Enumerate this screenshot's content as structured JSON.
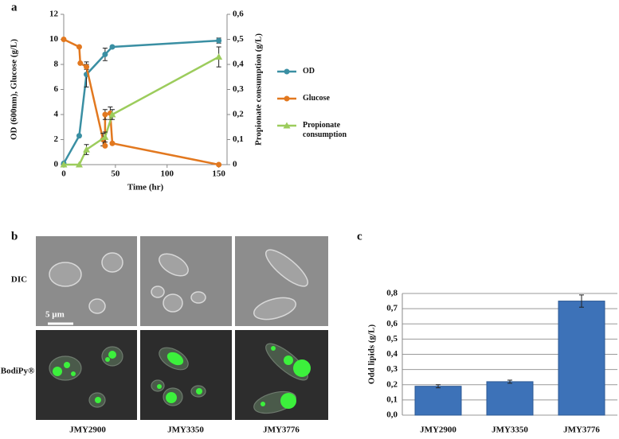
{
  "chart_data": [
    {
      "type": "line",
      "panel": "a",
      "x_label": "Time (hr)",
      "y_label": "OD (600nm), Glucose (g/L)",
      "y2_label": "Propionate consumption (g/L)",
      "xlim": [
        0,
        158
      ],
      "xticks": [
        0,
        50,
        100,
        150
      ],
      "ylim": [
        0,
        12
      ],
      "yticks": [
        0,
        2,
        4,
        6,
        8,
        10,
        12
      ],
      "y2lim": [
        0,
        0.6
      ],
      "y2ticks": [
        0,
        {
          "value": 0.1,
          "label": "0,1"
        },
        {
          "value": 0.2,
          "label": "0,2"
        },
        {
          "value": 0.3,
          "label": "0,3"
        },
        {
          "value": 0.4,
          "label": "0,4"
        },
        {
          "value": 0.5,
          "label": "0,5"
        },
        {
          "value": 0.6,
          "label": "0,6"
        }
      ],
      "series": [
        {
          "name": "OD",
          "color": "#3a8fa3",
          "marker": "circle",
          "x": [
            0,
            15,
            22,
            40,
            47,
            150
          ],
          "values": [
            0.1,
            2.3,
            7.2,
            8.8,
            9.4,
            9.9
          ],
          "errors": [
            null,
            null,
            1.0,
            0.5,
            null,
            0.2
          ]
        },
        {
          "name": "Glucose",
          "color": "#e2781f",
          "marker": "circle",
          "x": [
            0,
            15,
            16,
            22,
            38,
            40,
            40,
            45,
            47,
            150
          ],
          "values": [
            10,
            9.4,
            8.1,
            7.8,
            2.0,
            1.5,
            4.0,
            4.1,
            1.7,
            0
          ],
          "errors": [
            null,
            null,
            null,
            0.2,
            0.5,
            null,
            0.4,
            0.5,
            null,
            null
          ]
        },
        {
          "name": "Propionate consumption",
          "color": "#9ccc5c",
          "marker": "triangle",
          "axis": "y2",
          "x": [
            0,
            15,
            22,
            40,
            47,
            150
          ],
          "values": [
            0,
            0,
            0.06,
            0.11,
            0.2,
            0.43
          ],
          "errors": [
            null,
            null,
            0.02,
            0.02,
            0.02,
            0.04
          ]
        }
      ]
    },
    {
      "type": "bar",
      "panel": "c",
      "y_label": "Odd lipids (g/L)",
      "categories": [
        "JMY2900",
        "JMY3350",
        "JMY3776"
      ],
      "values": [
        0.19,
        0.22,
        0.75
      ],
      "errors": [
        0.01,
        0.01,
        0.04
      ],
      "color": "#3d72b8",
      "grid": true,
      "ylim": [
        0,
        0.8
      ],
      "yticks": [
        {
          "value": 0,
          "label": "0,0"
        },
        {
          "value": 0.1,
          "label": "0,1"
        },
        {
          "value": 0.2,
          "label": "0,2"
        },
        {
          "value": 0.3,
          "label": "0,3"
        },
        {
          "value": 0.4,
          "label": "0,4"
        },
        {
          "value": 0.5,
          "label": "0,5"
        },
        {
          "value": 0.6,
          "label": "0,6"
        },
        {
          "value": 0.7,
          "label": "0,7"
        },
        {
          "value": 0.8,
          "label": "0,8"
        }
      ]
    }
  ],
  "panel_b": {
    "label": "b",
    "rows": [
      "DIC",
      "BodiPy®"
    ],
    "columns": [
      "JMY2900",
      "JMY3350",
      "JMY3776"
    ],
    "scale_bar": "5 µm"
  }
}
